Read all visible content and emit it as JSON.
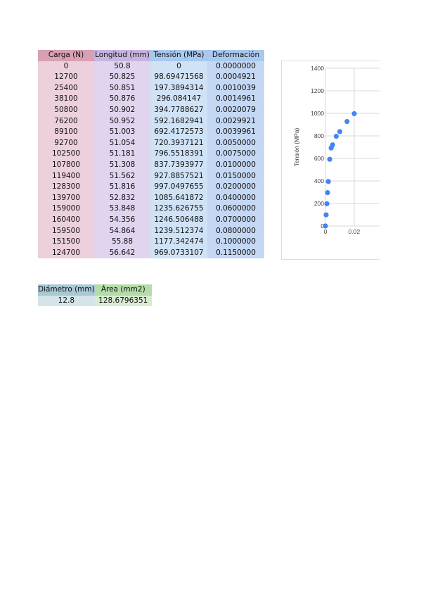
{
  "table": {
    "headers": [
      "Carga (N)",
      "Longitud (mm)",
      "Tensión (MPa)",
      "Deformación"
    ],
    "colors": {
      "carga_header": "#d8a0b4",
      "carga_cell": "#ecd0dc",
      "longitud_header": "#c8b4e0",
      "longitud_cell": "#e0d4ee",
      "tension_header": "#a8c8ee",
      "tension_cell": "#d0e2f6",
      "deformacion_header": "#a8c8ee",
      "deformacion_cell": "#c4d8f4"
    },
    "rows": [
      [
        "0",
        "50.8",
        "0",
        "0.0000000"
      ],
      [
        "12700",
        "50.825",
        "98.69471568",
        "0.0004921"
      ],
      [
        "25400",
        "50.851",
        "197.3894314",
        "0.0010039"
      ],
      [
        "38100",
        "50.876",
        "296.084147",
        "0.0014961"
      ],
      [
        "50800",
        "50.902",
        "394.7788627",
        "0.0020079"
      ],
      [
        "76200",
        "50.952",
        "592.1682941",
        "0.0029921"
      ],
      [
        "89100",
        "51.003",
        "692.4172573",
        "0.0039961"
      ],
      [
        "92700",
        "51.054",
        "720.3937121",
        "0.0050000"
      ],
      [
        "102500",
        "51.181",
        "796.5518391",
        "0.0075000"
      ],
      [
        "107800",
        "51.308",
        "837.7393977",
        "0.0100000"
      ],
      [
        "119400",
        "51.562",
        "927.8857521",
        "0.0150000"
      ],
      [
        "128300",
        "51.816",
        "997.0497655",
        "0.0200000"
      ],
      [
        "139700",
        "52.832",
        "1085.641872",
        "0.0400000"
      ],
      [
        "159000",
        "53.848",
        "1235.626755",
        "0.0600000"
      ],
      [
        "160400",
        "54.356",
        "1246.506488",
        "0.0700000"
      ],
      [
        "159500",
        "54.864",
        "1239.512374",
        "0.0800000"
      ],
      [
        "151500",
        "55.88",
        "1177.342474",
        "0.1000000"
      ],
      [
        "124700",
        "56.642",
        "969.0733107",
        "0.1150000"
      ]
    ]
  },
  "area_table": {
    "headers": [
      "Diámetro (mm)",
      "Área (mm2)"
    ],
    "values": [
      "12.8",
      "128.6796351"
    ],
    "colors": {
      "diametro_header": "#a8c8d4",
      "diametro_cell": "#d4e4e8",
      "area_header": "#b4dca8",
      "area_cell": "#d8ecd0"
    }
  },
  "chart_data": {
    "type": "scatter",
    "ylabel": "Tensión (MPa)",
    "y_ticks": [
      "1400",
      "1200",
      "1000",
      "800",
      "600",
      "400",
      "200",
      "0"
    ],
    "x_ticks": [
      "0",
      "0.02",
      "0"
    ],
    "ylim": [
      0,
      1400
    ],
    "xlim_visible": [
      0,
      0.035
    ],
    "grid": true,
    "point_color": "#4285f4",
    "points": [
      [
        0.0,
        0
      ],
      [
        0.0004921,
        98.69
      ],
      [
        0.0010039,
        197.39
      ],
      [
        0.0014961,
        296.08
      ],
      [
        0.0020079,
        394.78
      ],
      [
        0.0029921,
        592.17
      ],
      [
        0.0039961,
        692.42
      ],
      [
        0.005,
        720.39
      ],
      [
        0.0075,
        796.55
      ],
      [
        0.01,
        837.74
      ],
      [
        0.015,
        927.89
      ],
      [
        0.02,
        997.05
      ]
    ]
  }
}
